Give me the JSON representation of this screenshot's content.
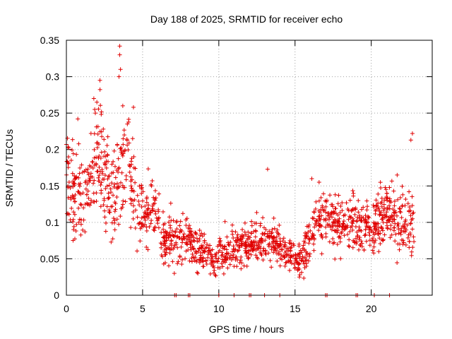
{
  "chart_data": {
    "type": "scatter",
    "title": "Day 188 of 2025, SRMTID for receiver echo",
    "xlabel": "GPS time / hours",
    "ylabel": "SRMTID / TECUs",
    "xlim": [
      0,
      24
    ],
    "ylim": [
      0,
      0.35
    ],
    "x_ticks": [
      0,
      5,
      10,
      15,
      20
    ],
    "x_tick_labels": [
      "0",
      "5",
      "10",
      "15",
      "20"
    ],
    "y_ticks": [
      0,
      0.05,
      0.1,
      0.15,
      0.2,
      0.25,
      0.3,
      0.35
    ],
    "y_tick_labels": [
      "0",
      "0.05",
      "0.1",
      "0.15",
      "0.2",
      "0.25",
      "0.3",
      "0.35"
    ],
    "grid": true,
    "marker": "plus",
    "series_color": "#e00000",
    "series": [
      {
        "name": "SRMTID",
        "trend": [
          [
            0.0,
            0.17
          ],
          [
            0.5,
            0.14
          ],
          [
            1.0,
            0.13
          ],
          [
            1.5,
            0.155
          ],
          [
            2.0,
            0.18
          ],
          [
            2.3,
            0.2
          ],
          [
            2.6,
            0.15
          ],
          [
            3.0,
            0.13
          ],
          [
            3.3,
            0.16
          ],
          [
            3.6,
            0.19
          ],
          [
            4.0,
            0.17
          ],
          [
            4.3,
            0.15
          ],
          [
            4.7,
            0.12
          ],
          [
            5.0,
            0.11
          ],
          [
            5.5,
            0.12
          ],
          [
            6.0,
            0.11
          ],
          [
            6.2,
            0.08
          ],
          [
            7.0,
            0.075
          ],
          [
            8.0,
            0.075
          ],
          [
            9.0,
            0.06
          ],
          [
            9.5,
            0.05
          ],
          [
            10.0,
            0.055
          ],
          [
            11.0,
            0.065
          ],
          [
            12.0,
            0.07
          ],
          [
            13.0,
            0.075
          ],
          [
            14.0,
            0.07
          ],
          [
            14.5,
            0.06
          ],
          [
            15.0,
            0.045
          ],
          [
            15.5,
            0.05
          ],
          [
            16.0,
            0.08
          ],
          [
            16.5,
            0.11
          ],
          [
            17.0,
            0.105
          ],
          [
            18.0,
            0.095
          ],
          [
            19.0,
            0.1
          ],
          [
            20.0,
            0.095
          ],
          [
            21.0,
            0.11
          ],
          [
            22.0,
            0.1
          ],
          [
            22.5,
            0.11
          ],
          [
            22.8,
            0.1
          ]
        ],
        "spread": [
          [
            0.0,
            0.04
          ],
          [
            3.0,
            0.05
          ],
          [
            4.5,
            0.045
          ],
          [
            6.0,
            0.025
          ],
          [
            9.0,
            0.02
          ],
          [
            13.0,
            0.02
          ],
          [
            15.0,
            0.015
          ],
          [
            16.5,
            0.025
          ],
          [
            20.0,
            0.025
          ],
          [
            22.8,
            0.03
          ]
        ],
        "peaks": [
          {
            "x": 3.5,
            "y": 0.342
          },
          {
            "x": 3.5,
            "y": 0.33
          },
          {
            "x": 3.55,
            "y": 0.31
          },
          {
            "x": 3.45,
            "y": 0.3
          },
          {
            "x": 2.2,
            "y": 0.295
          },
          {
            "x": 1.8,
            "y": 0.27
          },
          {
            "x": 2.0,
            "y": 0.265
          },
          {
            "x": 1.9,
            "y": 0.25
          },
          {
            "x": 4.4,
            "y": 0.258
          },
          {
            "x": 3.7,
            "y": 0.26
          },
          {
            "x": 0.75,
            "y": 0.242
          },
          {
            "x": 22.7,
            "y": 0.222
          },
          {
            "x": 22.6,
            "y": 0.213
          },
          {
            "x": 13.2,
            "y": 0.173
          },
          {
            "x": 4.0,
            "y": 0.235
          },
          {
            "x": 3.8,
            "y": 0.22
          },
          {
            "x": 0.0,
            "y": 0.207
          },
          {
            "x": 20.6,
            "y": 0.155
          },
          {
            "x": 21.7,
            "y": 0.165
          },
          {
            "x": 16.1,
            "y": 0.16
          }
        ],
        "zero_hours": [
          7.1,
          7.2,
          8.0,
          8.1,
          10.0,
          11.0,
          12.0,
          12.1,
          13.0,
          14.0,
          17.0,
          17.1,
          19.0,
          19.1,
          20.2,
          21.2
        ]
      }
    ]
  }
}
